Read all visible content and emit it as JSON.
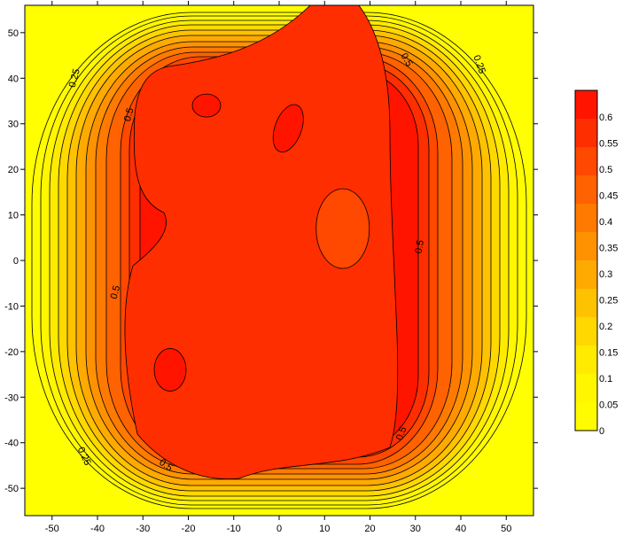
{
  "chart_data": {
    "type": "heatmap",
    "subtype": "filled-contour",
    "title": "",
    "xlabel": "",
    "ylabel": "",
    "xlim": [
      -56,
      56
    ],
    "ylim": [
      -56,
      56
    ],
    "x_ticks": [
      -50,
      -40,
      -30,
      -20,
      -10,
      0,
      10,
      20,
      30,
      40,
      50
    ],
    "y_ticks": [
      -50,
      -40,
      -30,
      -20,
      -10,
      0,
      10,
      20,
      30,
      40,
      50
    ],
    "contour_levels": [
      0,
      0.05,
      0.1,
      0.15,
      0.2,
      0.25,
      0.3,
      0.35,
      0.4,
      0.45,
      0.5,
      0.55,
      0.6
    ],
    "colorbar": {
      "position": "right",
      "labels": [
        "0.6",
        "0.55",
        "0.5",
        "0.45",
        "0.4",
        "0.35",
        "0.3",
        "0.25",
        "0.2",
        "0.15",
        "0.1",
        "0.05",
        "0"
      ],
      "colors": [
        "#ff1400",
        "#ff2e00",
        "#ff4800",
        "#ff6200",
        "#ff7a00",
        "#ff9200",
        "#ffaa00",
        "#ffc200",
        "#ffd800",
        "#ffeb00",
        "#fff600",
        "#fffc00",
        "#ffff00"
      ]
    },
    "contour_labels": [
      {
        "text": "0.25",
        "x": -45,
        "y": 40,
        "angle": -75
      },
      {
        "text": "0.5",
        "x": -33,
        "y": 32,
        "angle": -75
      },
      {
        "text": "0.5",
        "x": 28,
        "y": 44,
        "angle": 60
      },
      {
        "text": "0.25",
        "x": 44,
        "y": 43,
        "angle": 70
      },
      {
        "text": "0.5",
        "x": 31,
        "y": 3,
        "angle": -80
      },
      {
        "text": "0.5",
        "x": -36,
        "y": -7,
        "angle": -75
      },
      {
        "text": "0.5",
        "x": 27,
        "y": -38,
        "angle": -70
      },
      {
        "text": "0.25",
        "x": -43,
        "y": -43,
        "angle": 65
      },
      {
        "text": "0.5",
        "x": -25,
        "y": -45,
        "angle": 35
      }
    ],
    "peaks": [
      {
        "x": -16,
        "y": 34,
        "value": 0.62
      },
      {
        "x": 2,
        "y": 29,
        "value": 0.62
      },
      {
        "x": -24,
        "y": -24,
        "value": 0.62
      },
      {
        "x": 14,
        "y": 7,
        "value": 0.57
      }
    ]
  }
}
